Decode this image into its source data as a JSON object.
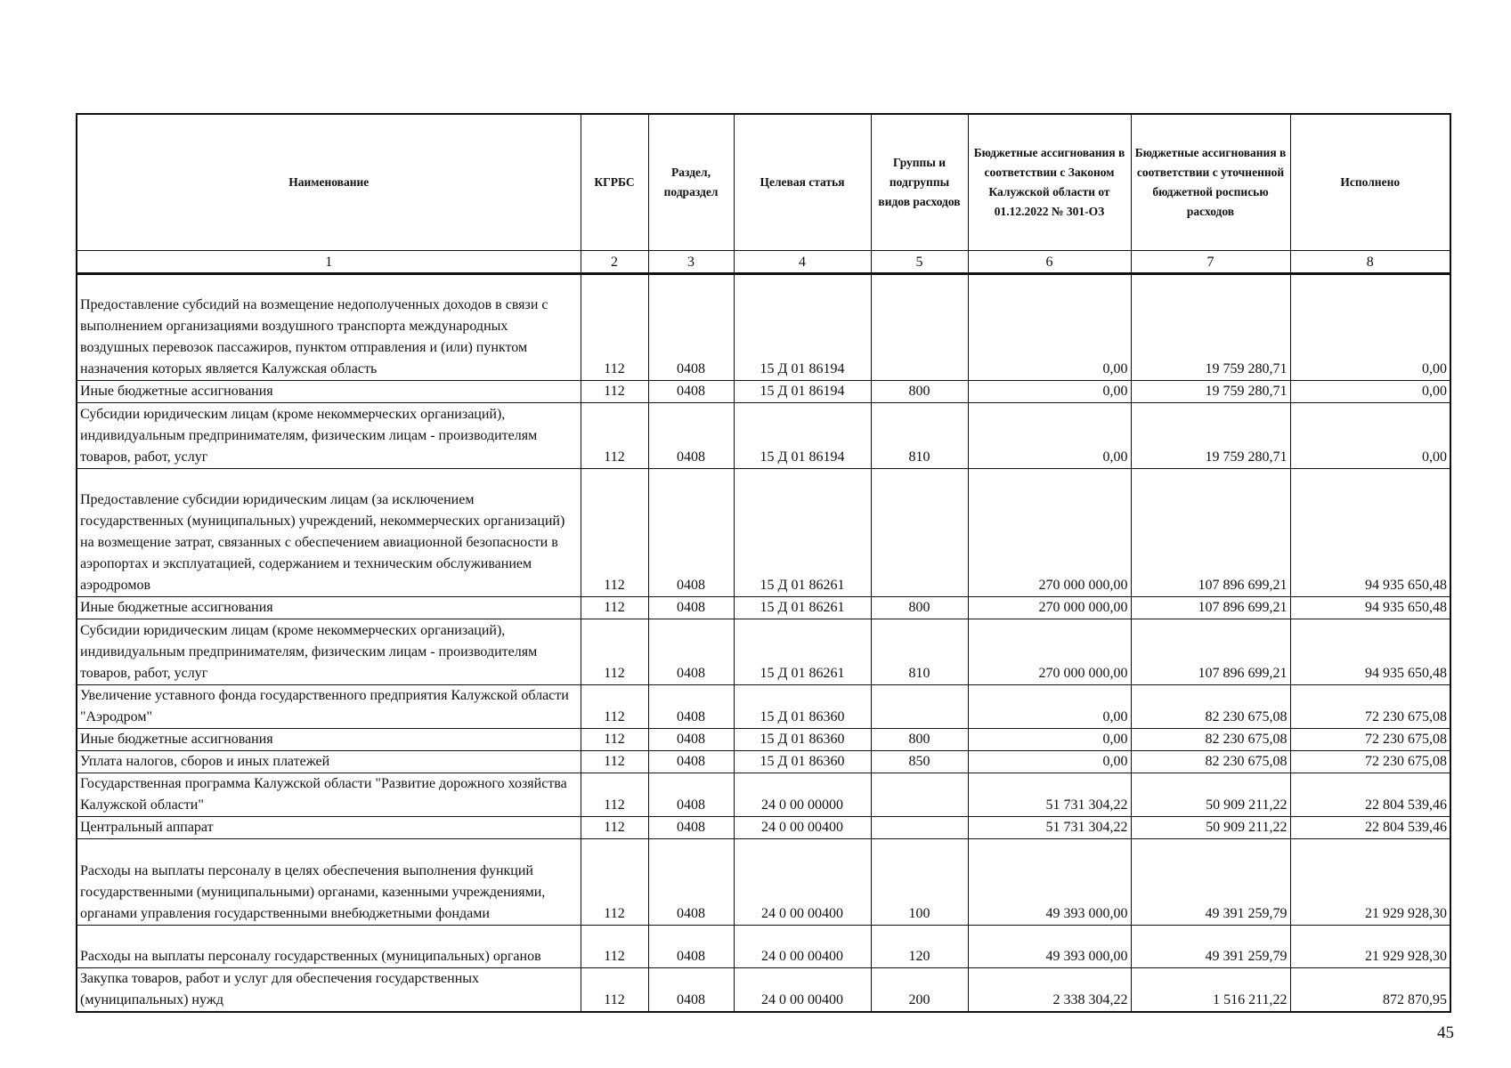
{
  "headers": [
    "Наименование",
    "КГРБС",
    "Раздел, подраздел",
    "Целевая статья",
    "Группы и подгруппы видов расходов",
    "Бюджетные ассигнования в соответствии с Законом Калужской области от 01.12.2022 № 301-ОЗ",
    "Бюджетные ассигнования в соответствии с уточненной бюджетной росписью расходов",
    "Исполнено"
  ],
  "column_numbers": [
    "1",
    "2",
    "3",
    "4",
    "5",
    "6",
    "7",
    "8"
  ],
  "rows": [
    {
      "name": "Предоставление субсидий на возмещение недополученных доходов в связи с выполнением организациями воздушного транспорта международных воздушных перевозок пассажиров, пунктом отправления и (или) пунктом назначения которых является Калужская область",
      "kgrbs": "112",
      "razdel": "0408",
      "cs": "15 Д 01 86194",
      "vr": "",
      "law": "0,00",
      "plan": "19 759 280,71",
      "exec": "0,00"
    },
    {
      "name": "Иные бюджетные ассигнования",
      "kgrbs": "112",
      "razdel": "0408",
      "cs": "15 Д 01 86194",
      "vr": "800",
      "law": "0,00",
      "plan": "19 759 280,71",
      "exec": "0,00"
    },
    {
      "name": "Субсидии юридическим лицам (кроме некоммерческих организаций), индивидуальным предпринимателям, физическим лицам - производителям товаров, работ, услуг",
      "kgrbs": "112",
      "razdel": "0408",
      "cs": "15 Д 01 86194",
      "vr": "810",
      "law": "0,00",
      "plan": "19 759 280,71",
      "exec": "0,00"
    },
    {
      "name": "Предоставление субсидии юридическим лицам (за исключением государственных (муниципальных) учреждений, некоммерческих организаций) на возмещение затрат, связанных с обеспечением авиационной безопасности в аэропортах и эксплуатацией, содержанием и техническим обслуживанием аэродромов",
      "kgrbs": "112",
      "razdel": "0408",
      "cs": "15 Д 01 86261",
      "vr": "",
      "law": "270 000 000,00",
      "plan": "107 896 699,21",
      "exec": "94 935 650,48"
    },
    {
      "name": "Иные бюджетные ассигнования",
      "kgrbs": "112",
      "razdel": "0408",
      "cs": "15 Д 01 86261",
      "vr": "800",
      "law": "270 000 000,00",
      "plan": "107 896 699,21",
      "exec": "94 935 650,48"
    },
    {
      "name": "Субсидии юридическим лицам (кроме некоммерческих организаций), индивидуальным предпринимателям, физическим лицам - производителям товаров, работ, услуг",
      "kgrbs": "112",
      "razdel": "0408",
      "cs": "15 Д 01 86261",
      "vr": "810",
      "law": "270 000 000,00",
      "plan": "107 896 699,21",
      "exec": "94 935 650,48"
    },
    {
      "name": "Увеличение уставного фонда государственного предприятия Калужской области \"Аэродром\"",
      "kgrbs": "112",
      "razdel": "0408",
      "cs": "15 Д 01 86360",
      "vr": "",
      "law": "0,00",
      "plan": "82 230 675,08",
      "exec": "72 230 675,08"
    },
    {
      "name": "Иные бюджетные ассигнования",
      "kgrbs": "112",
      "razdel": "0408",
      "cs": "15 Д 01 86360",
      "vr": "800",
      "law": "0,00",
      "plan": "82 230 675,08",
      "exec": "72 230 675,08"
    },
    {
      "name": "Уплата налогов, сборов и иных платежей",
      "kgrbs": "112",
      "razdel": "0408",
      "cs": "15 Д 01 86360",
      "vr": "850",
      "law": "0,00",
      "plan": "82 230 675,08",
      "exec": "72 230 675,08"
    },
    {
      "name": "Государственная программа Калужской области \"Развитие дорожного хозяйства Калужской области\"",
      "kgrbs": "112",
      "razdel": "0408",
      "cs": "24 0 00 00000",
      "vr": "",
      "law": "51 731 304,22",
      "plan": "50 909 211,22",
      "exec": "22 804 539,46"
    },
    {
      "name": "Центральный аппарат",
      "kgrbs": "112",
      "razdel": "0408",
      "cs": "24 0 00 00400",
      "vr": "",
      "law": "51 731 304,22",
      "plan": "50 909 211,22",
      "exec": "22 804 539,46"
    },
    {
      "name": "Расходы на выплаты персоналу в целях обеспечения выполнения функций государственными (муниципальными) органами, казенными учреждениями, органами управления государственными внебюджетными фондами",
      "kgrbs": "112",
      "razdel": "0408",
      "cs": "24 0 00 00400",
      "vr": "100",
      "law": "49 393 000,00",
      "plan": "49 391 259,79",
      "exec": "21 929 928,30"
    },
    {
      "name": "Расходы на выплаты персоналу государственных (муниципальных) органов",
      "kgrbs": "112",
      "razdel": "0408",
      "cs": "24 0 00 00400",
      "vr": "120",
      "law": "49 393 000,00",
      "plan": "49 391 259,79",
      "exec": "21 929 928,30"
    },
    {
      "name": "Закупка товаров, работ и услуг для обеспечения государственных (муниципальных) нужд",
      "kgrbs": "112",
      "razdel": "0408",
      "cs": "24 0 00 00400",
      "vr": "200",
      "law": "2 338 304,22",
      "plan": "1 516 211,22",
      "exec": "872 870,95"
    }
  ],
  "page_number": "45"
}
